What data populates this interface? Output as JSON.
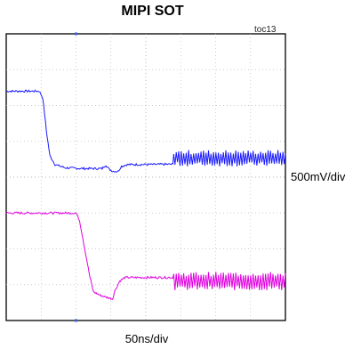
{
  "chart_data": {
    "type": "line",
    "title": "MIPI SOT",
    "figure_id": "toc13",
    "vertical_scale": "500mV/div",
    "horizontal_scale": "50ns/div",
    "grid": true,
    "divisions": {
      "x": 8,
      "y": 8
    },
    "x_range_div": [
      0,
      8
    ],
    "y_range_div": [
      -4,
      4
    ],
    "series": [
      {
        "color": "#1a1aff",
        "points": [
          [
            0,
            2.4
          ],
          [
            0.95,
            2.4
          ],
          [
            1.05,
            2.2
          ],
          [
            1.15,
            1.3
          ],
          [
            1.25,
            0.6
          ],
          [
            1.4,
            0.35
          ],
          [
            1.7,
            0.26
          ],
          [
            2.2,
            0.24
          ],
          [
            2.75,
            0.24
          ],
          [
            2.85,
            0.34
          ],
          [
            2.95,
            0.22
          ],
          [
            3.05,
            0.17
          ],
          [
            3.2,
            0.16
          ],
          [
            3.3,
            0.3
          ],
          [
            3.45,
            0.35
          ],
          [
            4.8,
            0.36
          ],
          [
            8,
            0.36
          ]
        ],
        "toggling_from_div": 4.8,
        "toggle_low": 0.36,
        "toggle_high": 0.7
      },
      {
        "color": "#e000e0",
        "points": [
          [
            0,
            -1.0
          ],
          [
            2.0,
            -1.0
          ],
          [
            2.1,
            -1.2
          ],
          [
            2.25,
            -2.0
          ],
          [
            2.4,
            -2.8
          ],
          [
            2.5,
            -3.2
          ],
          [
            2.7,
            -3.3
          ],
          [
            3.05,
            -3.4
          ],
          [
            3.1,
            -3.2
          ],
          [
            3.25,
            -2.9
          ],
          [
            3.4,
            -2.8
          ],
          [
            4.8,
            -2.8
          ],
          [
            8,
            -2.8
          ]
        ],
        "toggling_from_div": 4.8,
        "toggle_low": -3.1,
        "toggle_high": -2.7
      }
    ]
  }
}
